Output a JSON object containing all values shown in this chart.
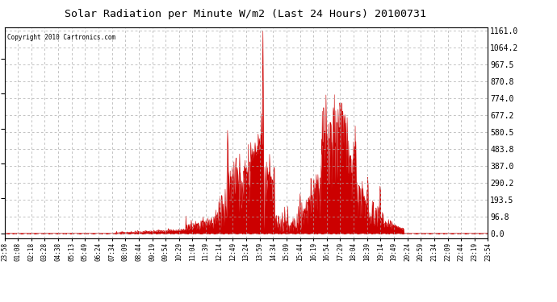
{
  "title": "Solar Radiation per Minute W/m2 (Last 24 Hours) 20100731",
  "copyright": "Copyright 2010 Cartronics.com",
  "bg_color": "#ffffff",
  "plot_bg_color": "#ffffff",
  "fill_color": "#cc0000",
  "line_color": "#cc0000",
  "dashed_h_color": "#cc0000",
  "grid_color": "#aaaaaa",
  "y_ticks": [
    0.0,
    96.8,
    193.5,
    290.2,
    387.0,
    483.8,
    580.5,
    677.2,
    774.0,
    870.8,
    967.5,
    1064.2,
    1161.0
  ],
  "ymax": 1161.0,
  "x_tick_labels": [
    "23:58",
    "01:08",
    "02:18",
    "03:28",
    "04:38",
    "05:13",
    "05:49",
    "06:24",
    "07:34",
    "08:09",
    "08:44",
    "09:19",
    "09:54",
    "10:29",
    "11:04",
    "11:39",
    "12:14",
    "12:49",
    "13:24",
    "13:59",
    "14:34",
    "15:09",
    "15:44",
    "16:19",
    "16:54",
    "17:29",
    "18:04",
    "18:39",
    "19:14",
    "19:49",
    "20:24",
    "20:59",
    "21:34",
    "22:09",
    "22:44",
    "23:19",
    "23:54"
  ]
}
